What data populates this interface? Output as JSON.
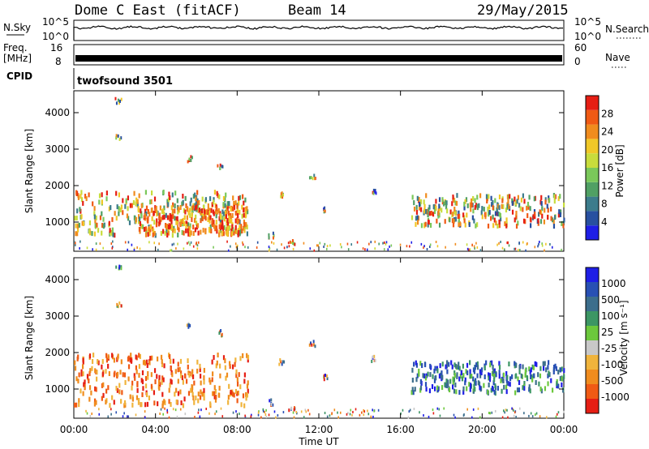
{
  "header": {
    "station": "Dome C East (fitACF)",
    "beam": "Beam 14",
    "date": "29/May/2015"
  },
  "side_labels": {
    "nsky": "N.Sky",
    "nsky_top": "10^5",
    "nsky_bottom": "10^0",
    "freq": "Freq.",
    "freq_unit": "[MHz]",
    "freq_top": "16",
    "freq_bottom": "8",
    "cpid": "CPID",
    "nsearch": "N.Search",
    "nsearch_top": "10^5",
    "nsearch_bottom": "10^0",
    "nave": "Nave",
    "nave_top": "60",
    "nave_bottom": "0"
  },
  "cpid_text": "twofsound 3501",
  "colors": {
    "power": [
      "#1e1ee6",
      "#2850a0",
      "#3c7c8c",
      "#50a064",
      "#7ac85a",
      "#c8dc3c",
      "#f0c828",
      "#f08c1e",
      "#f05a14",
      "#e61e14"
    ],
    "velocity": [
      "#e61e14",
      "#f05a14",
      "#f08c1e",
      "#f0b43c",
      "#c8c8c8",
      "#6cc83c",
      "#3c9664",
      "#3c6e8c",
      "#2850b4",
      "#1e1ee6"
    ]
  },
  "chart_data": [
    {
      "type": "heatmap",
      "title": "Power",
      "xlabel": "Time UT",
      "ylabel": "Slant Range [km]",
      "x_ticks": [
        "00:00",
        "04:00",
        "08:00",
        "12:00",
        "16:00",
        "20:00",
        "00:00"
      ],
      "y_ticks": [
        "1000",
        "2000",
        "3000",
        "4000"
      ],
      "ylim": [
        200,
        4600
      ],
      "colorbar_label": "Power [dB]",
      "colorbar_ticks": [
        "4",
        "8",
        "12",
        "16",
        "20",
        "24",
        "28"
      ],
      "regions": [
        {
          "t0": 0.0,
          "t1": 8.5,
          "r0": 700,
          "r1": 1900,
          "level": "mixed-high"
        },
        {
          "t0": 3.0,
          "t1": 8.5,
          "r0": 700,
          "r1": 1500,
          "level": "high"
        },
        {
          "t0": 16.5,
          "t1": 24.0,
          "r0": 950,
          "r1": 1800,
          "level": "mixed"
        }
      ]
    },
    {
      "type": "heatmap",
      "title": "Velocity",
      "xlabel": "Time UT",
      "ylabel": "Slant Range [km]",
      "x_ticks": [
        "00:00",
        "04:00",
        "08:00",
        "12:00",
        "16:00",
        "20:00",
        "00:00"
      ],
      "y_ticks": [
        "1000",
        "2000",
        "3000",
        "4000"
      ],
      "ylim": [
        200,
        4600
      ],
      "colorbar_label": "Velocity [m s⁻¹]",
      "colorbar_ticks": [
        "1000",
        "500",
        "100",
        "25",
        "-25",
        "-100",
        "-500",
        "-1000"
      ],
      "regions": [
        {
          "t0": 0.0,
          "t1": 8.5,
          "r0": 600,
          "r1": 2000,
          "level": "negative"
        },
        {
          "t0": 16.5,
          "t1": 24.0,
          "r0": 950,
          "r1": 1800,
          "level": "positive"
        }
      ]
    }
  ]
}
